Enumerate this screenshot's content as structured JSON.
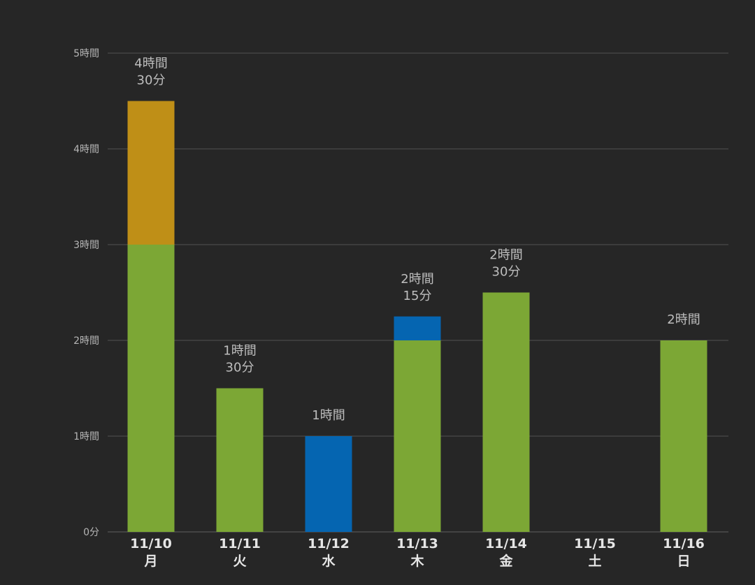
{
  "chart_data": {
    "type": "bar",
    "stacked": true,
    "unit": "minutes",
    "ylim": [
      0,
      300
    ],
    "yticks": [
      {
        "value": 0,
        "label": "0分"
      },
      {
        "value": 60,
        "label": "1時間"
      },
      {
        "value": 120,
        "label": "2時間"
      },
      {
        "value": 180,
        "label": "3時間"
      },
      {
        "value": 240,
        "label": "4時間"
      },
      {
        "value": 300,
        "label": "5時間"
      }
    ],
    "categories": [
      {
        "date": "11/10",
        "day": "月"
      },
      {
        "date": "11/11",
        "day": "火"
      },
      {
        "date": "11/12",
        "day": "水"
      },
      {
        "date": "11/13",
        "day": "木"
      },
      {
        "date": "11/14",
        "day": "金"
      },
      {
        "date": "11/15",
        "day": "土"
      },
      {
        "date": "11/16",
        "day": "日"
      }
    ],
    "series": [
      {
        "name": "green",
        "color": "#7ca735",
        "values": [
          180,
          90,
          0,
          120,
          150,
          0,
          120
        ]
      },
      {
        "name": "blue",
        "color": "#0565b1",
        "values": [
          0,
          0,
          60,
          15,
          0,
          0,
          0
        ]
      },
      {
        "name": "gold",
        "color": "#bf8f17",
        "values": [
          90,
          0,
          0,
          0,
          0,
          0,
          0
        ]
      }
    ],
    "total_labels": [
      [
        "4時間",
        "30分"
      ],
      [
        "1時間",
        "30分"
      ],
      [
        "1時間"
      ],
      [
        "2時間",
        "15分"
      ],
      [
        "2時間",
        "30分"
      ],
      [],
      [
        "2時間"
      ]
    ],
    "grid": true,
    "colors": {
      "background": "#262626",
      "grid": "#4a4a4a"
    }
  }
}
